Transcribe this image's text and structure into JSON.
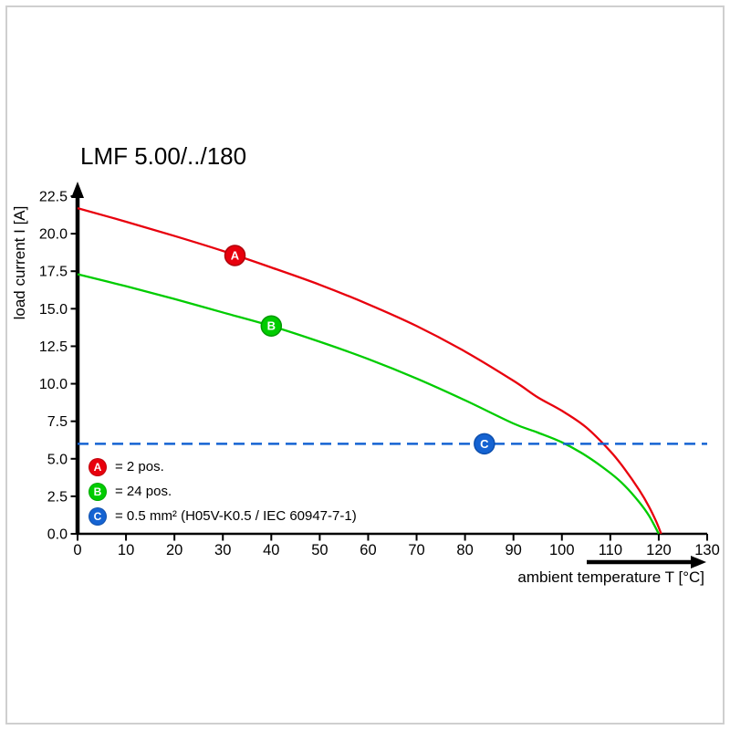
{
  "chart_data": {
    "type": "line",
    "title": "LMF 5.00/../180",
    "xlabel": "ambient temperature T [°C]",
    "ylabel": "load current I [A]",
    "xlim": [
      0,
      130
    ],
    "ylim": [
      0,
      22.5
    ],
    "x_ticks": [
      0,
      10,
      20,
      30,
      40,
      50,
      60,
      70,
      80,
      90,
      100,
      110,
      120,
      130
    ],
    "y_ticks": [
      0,
      2.5,
      5,
      7.5,
      10,
      12.5,
      15,
      17.5,
      20,
      22.5
    ],
    "y_tick_labels": [
      "0.0",
      "2.5",
      "5.0",
      "7.5",
      "10.0",
      "12.5",
      "15.0",
      "17.5",
      "20.0",
      "22.5"
    ],
    "grid": false,
    "legend_position": "lower-left-inside",
    "series": [
      {
        "name": "A",
        "label": "= 2 pos.",
        "color": "#e8000d",
        "edge": "#b0000a",
        "style": "solid",
        "points": [
          [
            0,
            21.7
          ],
          [
            10,
            20.8
          ],
          [
            20,
            19.85
          ],
          [
            30,
            18.85
          ],
          [
            40,
            17.75
          ],
          [
            50,
            16.6
          ],
          [
            60,
            15.3
          ],
          [
            70,
            13.85
          ],
          [
            80,
            12.15
          ],
          [
            90,
            10.2
          ],
          [
            95,
            9.1
          ],
          [
            100,
            8.2
          ],
          [
            105,
            7.1
          ],
          [
            110,
            5.5
          ],
          [
            113,
            4.3
          ],
          [
            116,
            2.9
          ],
          [
            118,
            1.8
          ],
          [
            119.5,
            0.8
          ],
          [
            120.5,
            0
          ]
        ]
      },
      {
        "name": "B",
        "label": "= 24 pos.",
        "color": "#00cc00",
        "edge": "#009900",
        "style": "solid",
        "points": [
          [
            0,
            17.3
          ],
          [
            10,
            16.5
          ],
          [
            20,
            15.65
          ],
          [
            30,
            14.75
          ],
          [
            40,
            13.85
          ],
          [
            50,
            12.8
          ],
          [
            60,
            11.65
          ],
          [
            70,
            10.35
          ],
          [
            80,
            8.9
          ],
          [
            90,
            7.35
          ],
          [
            95,
            6.75
          ],
          [
            100,
            6.1
          ],
          [
            105,
            5.2
          ],
          [
            110,
            4.05
          ],
          [
            113,
            3.2
          ],
          [
            116,
            2.1
          ],
          [
            118,
            1.2
          ],
          [
            120,
            0
          ]
        ]
      },
      {
        "name": "C",
        "label": "= 0.5 mm² (H05V-K0.5 / IEC 60947-7-1)",
        "color": "#1563d2",
        "edge": "#0d4fae",
        "style": "dashed",
        "points": [
          [
            0,
            6
          ],
          [
            130,
            6
          ]
        ]
      }
    ],
    "markers": [
      {
        "name": "A",
        "x": 32.5,
        "y": 18.55,
        "color": "#e8000d",
        "edge": "#b0000a"
      },
      {
        "name": "B",
        "x": 40,
        "y": 13.85,
        "color": "#00cc00",
        "edge": "#009900"
      },
      {
        "name": "C",
        "x": 84,
        "y": 6,
        "color": "#1563d2",
        "edge": "#0d4fae"
      }
    ]
  }
}
